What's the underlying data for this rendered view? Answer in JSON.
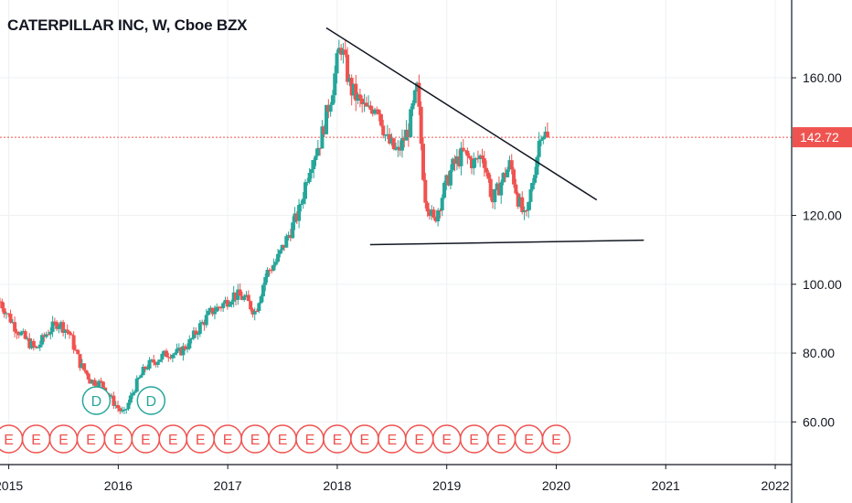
{
  "header": {
    "title": "CATERPILLAR INC, W, Cboe BZX"
  },
  "price_label": {
    "value": "142.72",
    "bg": "#ef5350"
  },
  "colors": {
    "up": "#26a69a",
    "down": "#ef5350",
    "grid": "#eef0f3",
    "trendline": "#131722"
  },
  "chart_data": {
    "type": "candlestick",
    "title": "CATERPILLAR INC, W, Cboe BZX",
    "x_range": [
      2014.92,
      2022.15
    ],
    "y_range": [
      47.6,
      182.6
    ],
    "y_ticks": [
      "60.00",
      "80.00",
      "100.00",
      "120.00",
      "160.00"
    ],
    "x_ticks": [
      "2015",
      "2016",
      "2017",
      "2018",
      "2019",
      "2020",
      "2021",
      "2022"
    ],
    "last_price": 142.72,
    "path": [
      [
        2014.92,
        95
      ],
      [
        2015.05,
        88
      ],
      [
        2015.15,
        84
      ],
      [
        2015.25,
        81
      ],
      [
        2015.35,
        86
      ],
      [
        2015.45,
        89
      ],
      [
        2015.55,
        86
      ],
      [
        2015.65,
        77
      ],
      [
        2015.75,
        72
      ],
      [
        2015.85,
        71
      ],
      [
        2015.95,
        66
      ],
      [
        2016.05,
        62
      ],
      [
        2016.15,
        70
      ],
      [
        2016.25,
        76
      ],
      [
        2016.35,
        78
      ],
      [
        2016.45,
        80
      ],
      [
        2016.55,
        80
      ],
      [
        2016.65,
        83
      ],
      [
        2016.75,
        88
      ],
      [
        2016.85,
        92
      ],
      [
        2016.95,
        94
      ],
      [
        2017.05,
        97
      ],
      [
        2017.15,
        96
      ],
      [
        2017.25,
        92
      ],
      [
        2017.35,
        103
      ],
      [
        2017.45,
        107
      ],
      [
        2017.55,
        114
      ],
      [
        2017.65,
        121
      ],
      [
        2017.75,
        135
      ],
      [
        2017.85,
        142
      ],
      [
        2017.95,
        156
      ],
      [
        2018.03,
        170
      ],
      [
        2018.12,
        157
      ],
      [
        2018.2,
        153
      ],
      [
        2018.28,
        150
      ],
      [
        2018.36,
        153
      ],
      [
        2018.45,
        142
      ],
      [
        2018.55,
        138
      ],
      [
        2018.65,
        145
      ],
      [
        2018.73,
        157
      ],
      [
        2018.8,
        126
      ],
      [
        2018.88,
        118
      ],
      [
        2018.96,
        126
      ],
      [
        2019.05,
        134
      ],
      [
        2019.15,
        138
      ],
      [
        2019.25,
        135
      ],
      [
        2019.33,
        138
      ],
      [
        2019.42,
        124
      ],
      [
        2019.5,
        130
      ],
      [
        2019.58,
        135
      ],
      [
        2019.65,
        125
      ],
      [
        2019.72,
        118
      ],
      [
        2019.8,
        133
      ],
      [
        2019.86,
        145
      ],
      [
        2019.92,
        142.72
      ]
    ],
    "trendlines": [
      {
        "name": "descending-resistance",
        "from": [
          2017.9,
          174.5
        ],
        "to": [
          2020.37,
          124.5
        ]
      },
      {
        "name": "flat-support",
        "from": [
          2018.3,
          111.5
        ],
        "to": [
          2020.8,
          112.8
        ]
      }
    ],
    "events": {
      "dividends": [
        2015.8,
        2016.3
      ],
      "earnings": [
        2015.0,
        2015.25,
        2015.5,
        2015.75,
        2016.0,
        2016.25,
        2016.5,
        2016.75,
        2017.0,
        2017.25,
        2017.5,
        2017.75,
        2018.0,
        2018.25,
        2018.5,
        2018.75,
        2019.0,
        2019.25,
        2019.5,
        2019.75,
        2020.0
      ]
    },
    "marker_labels": {
      "dividend": "D",
      "earnings": "E"
    },
    "grid": true
  }
}
